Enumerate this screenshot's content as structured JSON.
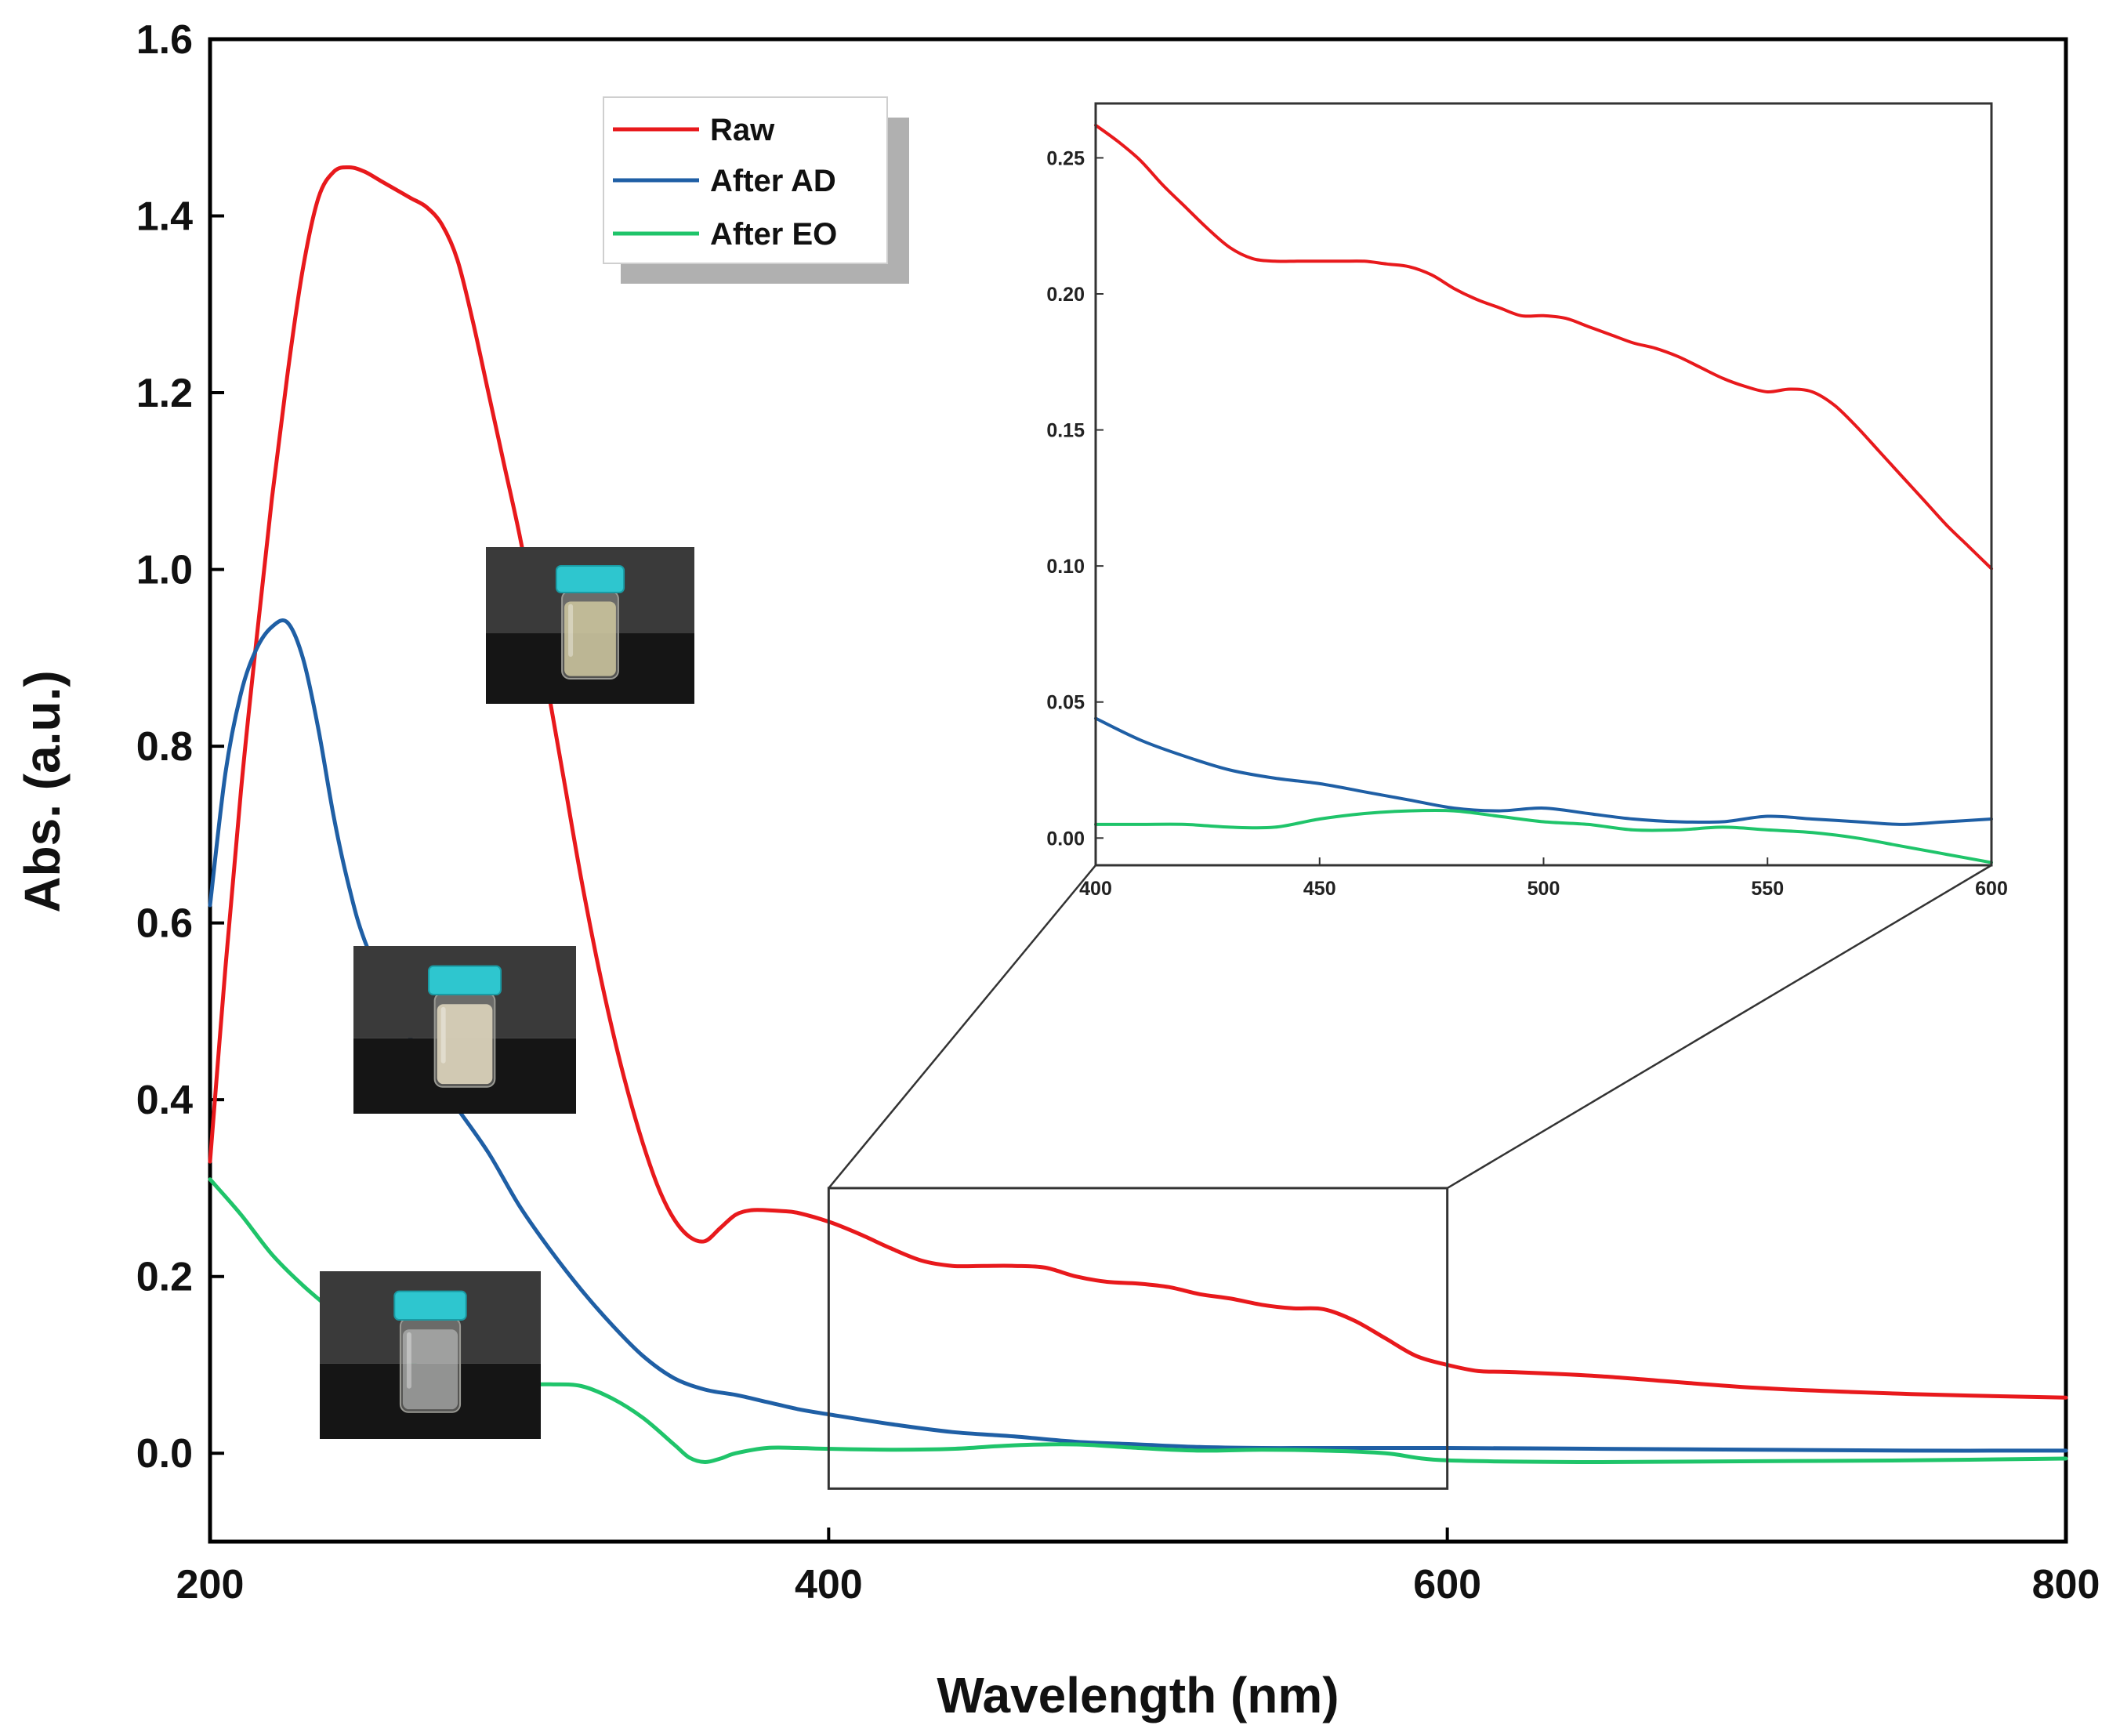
{
  "chart_data": [
    {
      "id": "main",
      "type": "line",
      "title": "",
      "xlabel": "Wavelength (nm)",
      "ylabel": "Abs. (a.u.)",
      "xlim": [
        200,
        800
      ],
      "ylim": [
        -0.1,
        1.6
      ],
      "xticks": [
        200,
        400,
        600,
        800
      ],
      "xtick_labels": [
        "200",
        "400",
        "600",
        "800"
      ],
      "yticks": [
        0.0,
        0.2,
        0.4,
        0.6,
        0.8,
        1.0,
        1.2,
        1.4,
        1.6
      ],
      "ytick_labels": [
        "0.0",
        "0.2",
        "0.4",
        "0.6",
        "0.8",
        "1.0",
        "1.2",
        "1.4",
        "1.6"
      ],
      "grid": false,
      "legend": {
        "placement": "top-center",
        "entries": [
          "Raw",
          "After AD",
          "After EO"
        ]
      },
      "zoom_box": {
        "x": [
          400,
          600
        ],
        "y": [
          -0.04,
          0.3
        ]
      },
      "series": [
        {
          "name": "Raw",
          "color": "#e8191c",
          "x": [
            200,
            205,
            210,
            215,
            220,
            225,
            230,
            235,
            240,
            245,
            250,
            255,
            260,
            265,
            270,
            275,
            280,
            285,
            290,
            295,
            300,
            305,
            310,
            315,
            320,
            325,
            330,
            335,
            340,
            345,
            350,
            355,
            360,
            365,
            370,
            375,
            380,
            385,
            390,
            400,
            410,
            420,
            430,
            440,
            450,
            460,
            470,
            480,
            490,
            500,
            510,
            520,
            530,
            540,
            550,
            560,
            570,
            580,
            590,
            600,
            610,
            620,
            650,
            700,
            750,
            800
          ],
          "y": [
            0.33,
            0.55,
            0.75,
            0.92,
            1.08,
            1.22,
            1.34,
            1.42,
            1.45,
            1.455,
            1.45,
            1.44,
            1.43,
            1.42,
            1.41,
            1.39,
            1.35,
            1.28,
            1.2,
            1.12,
            1.04,
            0.95,
            0.85,
            0.75,
            0.65,
            0.56,
            0.48,
            0.41,
            0.35,
            0.3,
            0.265,
            0.245,
            0.24,
            0.255,
            0.27,
            0.275,
            0.275,
            0.274,
            0.272,
            0.262,
            0.248,
            0.232,
            0.218,
            0.212,
            0.212,
            0.212,
            0.21,
            0.2,
            0.194,
            0.192,
            0.188,
            0.18,
            0.175,
            0.168,
            0.164,
            0.163,
            0.15,
            0.13,
            0.11,
            0.1,
            0.093,
            0.092,
            0.087,
            0.074,
            0.067,
            0.063
          ]
        },
        {
          "name": "After AD",
          "color": "#1f5fa5",
          "x": [
            200,
            205,
            210,
            215,
            220,
            225,
            230,
            235,
            240,
            245,
            250,
            260,
            270,
            280,
            290,
            300,
            310,
            320,
            330,
            340,
            350,
            360,
            370,
            380,
            390,
            400,
            420,
            440,
            460,
            480,
            500,
            520,
            540,
            560,
            580,
            600,
            650,
            700,
            750,
            800
          ],
          "y": [
            0.62,
            0.77,
            0.86,
            0.91,
            0.935,
            0.94,
            0.9,
            0.82,
            0.72,
            0.64,
            0.58,
            0.5,
            0.44,
            0.39,
            0.34,
            0.28,
            0.23,
            0.185,
            0.145,
            0.11,
            0.085,
            0.072,
            0.066,
            0.058,
            0.05,
            0.044,
            0.033,
            0.024,
            0.019,
            0.013,
            0.01,
            0.007,
            0.006,
            0.006,
            0.006,
            0.006,
            0.005,
            0.004,
            0.003,
            0.003
          ]
        },
        {
          "name": "After EO",
          "color": "#1fc46a",
          "x": [
            200,
            210,
            220,
            230,
            240,
            250,
            260,
            270,
            280,
            290,
            300,
            310,
            320,
            330,
            340,
            350,
            355,
            360,
            365,
            370,
            380,
            390,
            400,
            420,
            440,
            460,
            480,
            500,
            520,
            540,
            560,
            580,
            600,
            650,
            700,
            750,
            800
          ],
          "y": [
            0.31,
            0.27,
            0.225,
            0.19,
            0.16,
            0.13,
            0.11,
            0.095,
            0.087,
            0.081,
            0.078,
            0.078,
            0.076,
            0.062,
            0.04,
            0.01,
            -0.005,
            -0.01,
            -0.006,
            0.0,
            0.006,
            0.006,
            0.005,
            0.004,
            0.005,
            0.009,
            0.01,
            0.006,
            0.003,
            0.004,
            0.003,
            0.0,
            -0.008,
            -0.01,
            -0.009,
            -0.008,
            -0.006
          ]
        }
      ]
    },
    {
      "id": "inset",
      "type": "line",
      "title": "",
      "xlabel": "",
      "ylabel": "",
      "xlim": [
        400,
        600
      ],
      "ylim": [
        -0.01,
        0.27
      ],
      "xticks": [
        400,
        450,
        500,
        550,
        600
      ],
      "xtick_labels": [
        "400",
        "450",
        "500",
        "550",
        "600"
      ],
      "yticks": [
        0.0,
        0.05,
        0.1,
        0.15,
        0.2,
        0.25
      ],
      "ytick_labels": [
        "0.00",
        "0.05",
        "0.10",
        "0.15",
        "0.20",
        "0.25"
      ],
      "grid": false,
      "series": [
        {
          "name": "Raw",
          "color": "#e8191c",
          "x": [
            400,
            405,
            410,
            415,
            420,
            425,
            430,
            435,
            440,
            445,
            450,
            455,
            460,
            465,
            470,
            475,
            480,
            485,
            490,
            495,
            500,
            505,
            510,
            515,
            520,
            525,
            530,
            535,
            540,
            545,
            550,
            555,
            560,
            565,
            570,
            575,
            580,
            585,
            590,
            595,
            600
          ],
          "y": [
            0.262,
            0.256,
            0.249,
            0.24,
            0.232,
            0.224,
            0.217,
            0.213,
            0.212,
            0.212,
            0.212,
            0.212,
            0.212,
            0.211,
            0.21,
            0.207,
            0.202,
            0.198,
            0.195,
            0.192,
            0.192,
            0.191,
            0.188,
            0.185,
            0.182,
            0.18,
            0.177,
            0.173,
            0.169,
            0.166,
            0.164,
            0.165,
            0.164,
            0.159,
            0.151,
            0.142,
            0.133,
            0.124,
            0.115,
            0.107,
            0.099
          ]
        },
        {
          "name": "After AD",
          "color": "#1f5fa5",
          "x": [
            400,
            410,
            420,
            430,
            440,
            450,
            460,
            470,
            480,
            490,
            500,
            510,
            520,
            530,
            540,
            550,
            560,
            570,
            580,
            590,
            600
          ],
          "y": [
            0.044,
            0.036,
            0.03,
            0.025,
            0.022,
            0.02,
            0.017,
            0.014,
            0.011,
            0.01,
            0.011,
            0.009,
            0.007,
            0.006,
            0.006,
            0.008,
            0.007,
            0.006,
            0.005,
            0.006,
            0.007
          ]
        },
        {
          "name": "After EO",
          "color": "#1fc46a",
          "x": [
            400,
            410,
            420,
            430,
            440,
            450,
            460,
            470,
            480,
            490,
            500,
            510,
            520,
            530,
            540,
            550,
            560,
            570,
            580,
            590,
            600
          ],
          "y": [
            0.005,
            0.005,
            0.005,
            0.004,
            0.004,
            0.007,
            0.009,
            0.01,
            0.01,
            0.008,
            0.006,
            0.005,
            0.003,
            0.003,
            0.004,
            0.003,
            0.002,
            0.0,
            -0.003,
            -0.006,
            -0.009
          ]
        }
      ]
    }
  ]
}
